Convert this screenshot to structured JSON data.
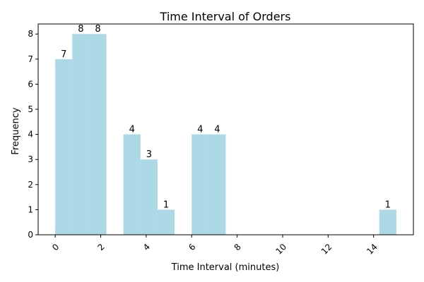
{
  "chart_data": {
    "type": "bar",
    "title": "Time Interval of Orders",
    "xlabel": "Time Interval (minutes)",
    "ylabel": "Frequency",
    "bins": [
      {
        "start": 0.0,
        "end": 0.75,
        "value": 7
      },
      {
        "start": 0.75,
        "end": 1.5,
        "value": 8
      },
      {
        "start": 1.5,
        "end": 2.25,
        "value": 8
      },
      {
        "start": 2.25,
        "end": 3.0,
        "value": 0
      },
      {
        "start": 3.0,
        "end": 3.75,
        "value": 4
      },
      {
        "start": 3.75,
        "end": 4.5,
        "value": 3
      },
      {
        "start": 4.5,
        "end": 5.25,
        "value": 1
      },
      {
        "start": 5.25,
        "end": 6.0,
        "value": 0
      },
      {
        "start": 6.0,
        "end": 6.75,
        "value": 4
      },
      {
        "start": 6.75,
        "end": 7.5,
        "value": 4
      },
      {
        "start": 7.5,
        "end": 8.25,
        "value": 0
      },
      {
        "start": 8.25,
        "end": 9.0,
        "value": 0
      },
      {
        "start": 9.0,
        "end": 9.75,
        "value": 0
      },
      {
        "start": 9.75,
        "end": 10.5,
        "value": 0
      },
      {
        "start": 10.5,
        "end": 11.25,
        "value": 0
      },
      {
        "start": 11.25,
        "end": 12.0,
        "value": 0
      },
      {
        "start": 12.0,
        "end": 12.75,
        "value": 0
      },
      {
        "start": 12.75,
        "end": 13.5,
        "value": 0
      },
      {
        "start": 13.5,
        "end": 14.25,
        "value": 0
      },
      {
        "start": 14.25,
        "end": 15.0,
        "value": 1
      }
    ],
    "xticks": [
      0,
      2,
      4,
      6,
      8,
      10,
      12,
      14
    ],
    "yticks": [
      0,
      1,
      2,
      3,
      4,
      5,
      6,
      7,
      8
    ],
    "xlim": [
      -0.75,
      15.75
    ],
    "ylim": [
      0,
      8.4
    ],
    "bar_color": "#add8e6",
    "grid": false,
    "legend": "none"
  }
}
